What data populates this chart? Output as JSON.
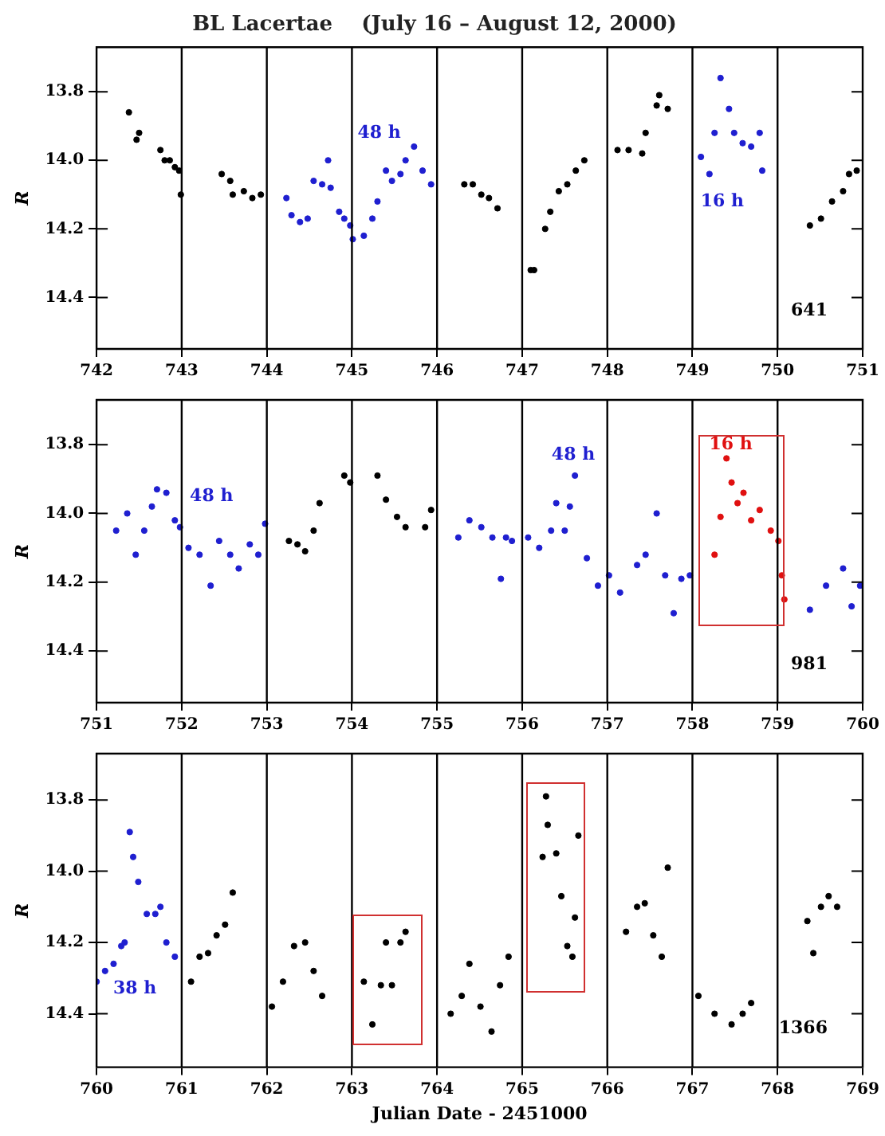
{
  "chart_data": [
    {
      "type": "scatter",
      "title": "BL Lacertae    (July 16 – August 12, 2000)",
      "ylabel": "R",
      "xlim": [
        742,
        751
      ],
      "xticks": [
        742,
        743,
        744,
        745,
        746,
        747,
        748,
        749,
        750,
        751
      ],
      "ylim": [
        14.55,
        13.67
      ],
      "yticks": [
        {
          "value": 13.8,
          "label": "13.8"
        },
        {
          "value": 14,
          "label": "14.0"
        },
        {
          "value": 14.2,
          "label": "14.2"
        },
        {
          "value": 14.4,
          "label": "14.4"
        }
      ],
      "grid": false,
      "legend": false,
      "marker": "circle",
      "ref_lines": [
        {
          "axis": "x",
          "value": 743
        },
        {
          "axis": "x",
          "value": 744
        },
        {
          "axis": "x",
          "value": 745
        },
        {
          "axis": "x",
          "value": 746
        },
        {
          "axis": "x",
          "value": 747
        },
        {
          "axis": "x",
          "value": 748
        },
        {
          "axis": "x",
          "value": 749
        },
        {
          "axis": "x",
          "value": 750
        }
      ],
      "annotations": [
        "48 h",
        "16 h",
        "641"
      ],
      "series": [
        {
          "color": "#000000",
          "x": [
            742.38,
            742.47,
            742.5,
            742.75,
            742.8,
            742.86,
            742.92,
            742.97,
            742.99,
            743.47,
            743.57,
            743.6,
            743.73,
            743.83,
            743.93,
            746.32,
            746.42,
            746.52,
            746.61,
            746.71,
            747.1,
            747.14,
            747.27,
            747.33,
            747.43,
            747.53,
            747.63,
            747.73,
            748.12,
            748.25,
            748.41,
            748.45,
            748.58,
            748.61,
            748.71,
            750.38,
            750.51,
            750.64,
            750.77,
            750.84,
            750.93
          ],
          "values": [
            13.86,
            13.94,
            13.92,
            13.97,
            14.0,
            14.0,
            14.02,
            14.03,
            14.1,
            14.04,
            14.06,
            14.1,
            14.09,
            14.11,
            14.1,
            14.07,
            14.07,
            14.1,
            14.11,
            14.14,
            14.32,
            14.32,
            14.2,
            14.15,
            14.09,
            14.07,
            14.03,
            14.0,
            13.97,
            13.97,
            13.98,
            13.92,
            13.84,
            13.81,
            13.85,
            14.19,
            14.17,
            14.12,
            14.09,
            14.04,
            14.03
          ]
        },
        {
          "color": "#1f1fd0",
          "x": [
            744.23,
            744.29,
            744.39,
            744.48,
            744.55,
            744.65,
            744.72,
            744.75,
            744.85,
            744.91,
            744.98,
            745.01,
            745.14,
            745.24,
            745.3,
            745.4,
            745.47,
            745.57,
            745.63,
            745.73,
            745.83,
            745.93,
            749.1,
            749.2,
            749.26,
            749.33,
            749.43,
            749.49,
            749.59,
            749.69,
            749.79,
            749.82
          ],
          "values": [
            14.11,
            14.16,
            14.18,
            14.17,
            14.06,
            14.07,
            14.0,
            14.08,
            14.15,
            14.17,
            14.19,
            14.23,
            14.22,
            14.17,
            14.12,
            14.03,
            14.06,
            14.04,
            14.0,
            13.96,
            14.03,
            14.07,
            13.99,
            14.04,
            13.92,
            13.76,
            13.85,
            13.92,
            13.95,
            13.96,
            13.92,
            14.03
          ]
        }
      ]
    },
    {
      "type": "scatter",
      "ylabel": "R",
      "xlim": [
        751,
        760
      ],
      "xticks": [
        751,
        752,
        753,
        754,
        755,
        756,
        757,
        758,
        759,
        760
      ],
      "ylim": [
        14.55,
        13.67
      ],
      "yticks": [
        {
          "value": 13.8,
          "label": "13.8"
        },
        {
          "value": 14,
          "label": "14.0"
        },
        {
          "value": 14.2,
          "label": "14.2"
        },
        {
          "value": 14.4,
          "label": "14.4"
        }
      ],
      "grid": false,
      "legend": false,
      "marker": "circle",
      "ref_lines": [
        {
          "axis": "x",
          "value": 752
        },
        {
          "axis": "x",
          "value": 753
        },
        {
          "axis": "x",
          "value": 754
        },
        {
          "axis": "x",
          "value": 755
        },
        {
          "axis": "x",
          "value": 756
        },
        {
          "axis": "x",
          "value": 757
        },
        {
          "axis": "x",
          "value": 758
        },
        {
          "axis": "x",
          "value": 759
        }
      ],
      "annotations": [
        "48 h",
        "48 h",
        "16 h",
        "981"
      ],
      "series": [
        {
          "color": "#1f1fd0",
          "x": [
            751.23,
            751.36,
            751.46,
            751.56,
            751.65,
            751.71,
            751.82,
            751.92,
            751.98,
            752.08,
            752.21,
            752.34,
            752.44,
            752.57,
            752.67,
            752.8,
            752.9,
            752.98,
            755.25,
            755.38,
            755.52,
            755.65,
            755.75,
            755.81,
            755.88,
            756.07,
            756.2,
            756.34,
            756.4,
            756.5,
            756.56,
            756.62,
            756.76,
            756.89,
            757.02,
            757.15,
            757.35,
            757.45,
            757.58,
            757.68,
            757.78,
            757.87,
            757.97,
            759.38,
            759.57,
            759.77,
            759.87,
            759.97
          ],
          "values": [
            14.05,
            14.0,
            14.12,
            14.05,
            13.98,
            13.93,
            13.94,
            14.02,
            14.04,
            14.1,
            14.12,
            14.21,
            14.08,
            14.12,
            14.16,
            14.09,
            14.12,
            14.03,
            14.07,
            14.02,
            14.04,
            14.07,
            14.19,
            14.07,
            14.08,
            14.07,
            14.1,
            14.05,
            13.97,
            14.05,
            13.98,
            13.89,
            14.13,
            14.21,
            14.18,
            14.23,
            14.15,
            14.12,
            14.0,
            14.18,
            14.29,
            14.19,
            14.18,
            14.28,
            14.21,
            14.16,
            14.27,
            14.21
          ]
        },
        {
          "color": "#000000",
          "x": [
            753.26,
            753.36,
            753.45,
            753.55,
            753.62,
            753.91,
            753.98,
            754.3,
            754.4,
            754.53,
            754.63,
            754.86,
            754.93
          ],
          "values": [
            14.08,
            14.09,
            14.11,
            14.05,
            13.97,
            13.89,
            13.91,
            13.89,
            13.96,
            14.01,
            14.04,
            14.04,
            13.99
          ]
        },
        {
          "color": "#e01010",
          "x": [
            758.26,
            758.33,
            758.4,
            758.46,
            758.53,
            758.6,
            758.69,
            758.79,
            758.92,
            759.01,
            759.05,
            759.08
          ],
          "values": [
            14.12,
            14.01,
            13.84,
            13.91,
            13.97,
            13.94,
            14.02,
            13.99,
            14.05,
            14.08,
            14.18,
            14.25
          ]
        }
      ]
    },
    {
      "type": "scatter",
      "ylabel": "R",
      "xlabel": "Julian Date - 2451000",
      "xlim": [
        760,
        769
      ],
      "xticks": [
        760,
        761,
        762,
        763,
        764,
        765,
        766,
        767,
        768,
        769
      ],
      "ylim": [
        14.55,
        13.67
      ],
      "yticks": [
        {
          "value": 13.8,
          "label": "13.8"
        },
        {
          "value": 14,
          "label": "14.0"
        },
        {
          "value": 14.2,
          "label": "14.2"
        },
        {
          "value": 14.4,
          "label": "14.4"
        }
      ],
      "grid": false,
      "legend": false,
      "marker": "circle",
      "ref_lines": [
        {
          "axis": "x",
          "value": 761
        },
        {
          "axis": "x",
          "value": 762
        },
        {
          "axis": "x",
          "value": 763
        },
        {
          "axis": "x",
          "value": 764
        },
        {
          "axis": "x",
          "value": 765
        },
        {
          "axis": "x",
          "value": 766
        },
        {
          "axis": "x",
          "value": 767
        },
        {
          "axis": "x",
          "value": 768
        }
      ],
      "annotations": [
        "38 h",
        "1366"
      ],
      "series": [
        {
          "color": "#1f1fd0",
          "x": [
            760.0,
            760.1,
            760.2,
            760.29,
            760.33,
            760.39,
            760.43,
            760.49,
            760.59,
            760.69,
            760.75,
            760.82,
            760.92
          ],
          "values": [
            14.31,
            14.28,
            14.26,
            14.21,
            14.2,
            13.89,
            13.96,
            14.03,
            14.12,
            14.12,
            14.1,
            14.2,
            14.24
          ]
        },
        {
          "color": "#000000",
          "x": [
            761.11,
            761.21,
            761.31,
            761.41,
            761.51,
            761.6,
            762.06,
            762.19,
            762.32,
            762.45,
            762.55,
            762.65,
            763.14,
            763.24,
            763.34,
            763.4,
            763.47,
            763.57,
            763.63,
            764.16,
            764.29,
            764.38,
            764.51,
            764.64,
            764.74,
            764.84,
            765.24,
            765.28,
            765.3,
            765.4,
            765.46,
            765.53,
            765.59,
            765.62,
            765.66,
            766.22,
            766.35,
            766.44,
            766.54,
            766.64,
            766.71,
            767.07,
            767.26,
            767.46,
            767.59,
            767.69,
            768.35,
            768.42,
            768.51,
            768.6,
            768.7
          ],
          "values": [
            14.31,
            14.24,
            14.23,
            14.18,
            14.15,
            14.06,
            14.38,
            14.31,
            14.21,
            14.2,
            14.28,
            14.35,
            14.31,
            14.43,
            14.32,
            14.2,
            14.32,
            14.2,
            14.17,
            14.4,
            14.35,
            14.26,
            14.38,
            14.45,
            14.32,
            14.24,
            13.96,
            13.79,
            13.87,
            13.95,
            14.07,
            14.21,
            14.24,
            14.13,
            13.9,
            14.17,
            14.1,
            14.09,
            14.18,
            14.24,
            13.99,
            14.35,
            14.4,
            14.43,
            14.4,
            14.37,
            14.14,
            14.23,
            14.1,
            14.07,
            14.1
          ]
        }
      ]
    }
  ]
}
